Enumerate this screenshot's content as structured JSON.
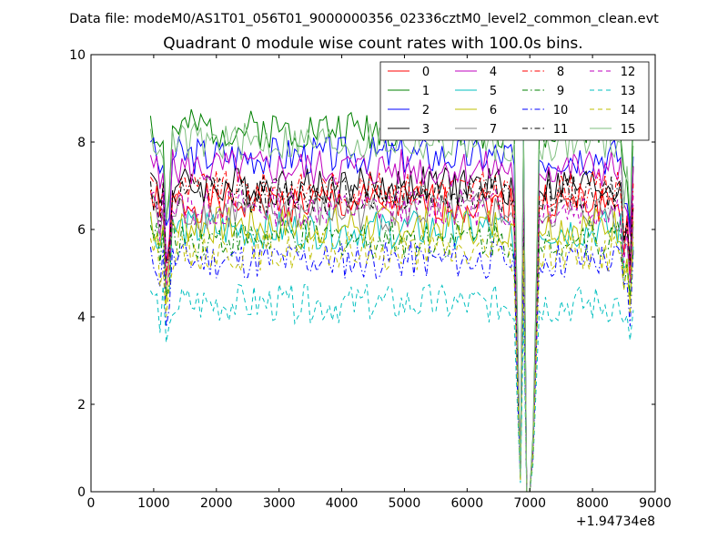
{
  "header": {
    "data_file": "Data file: modeM0/AS1T01_056T01_9000000356_02336cztM0_level2_common_clean.evt"
  },
  "chart_data": {
    "type": "line",
    "title": "Quadrant 0 module wise count rates with 100.0s bins.",
    "xlabel": "",
    "ylabel": "",
    "x_offset_label": "+1.94734e8",
    "xlim": [
      0,
      9000
    ],
    "ylim": [
      0,
      10
    ],
    "x_ticks": [
      0,
      1000,
      2000,
      3000,
      4000,
      5000,
      6000,
      7000,
      8000,
      9000
    ],
    "y_ticks": [
      0,
      2,
      4,
      6,
      8,
      10
    ],
    "x_tick_labels": [
      "0",
      "1000",
      "2000",
      "3000",
      "4000",
      "5000",
      "6000",
      "7000",
      "8000",
      "9000"
    ],
    "y_tick_labels": [
      "0",
      "2",
      "4",
      "6",
      "8",
      "10"
    ],
    "grid": false,
    "legend_position": "top-right",
    "x_start": 950,
    "x_step": 50,
    "series": [
      {
        "name": "0",
        "color": "#ff0000",
        "dash": "solid",
        "base": 6.6,
        "seed": 1
      },
      {
        "name": "1",
        "color": "#008000",
        "dash": "solid",
        "base": 8.3,
        "seed": 2
      },
      {
        "name": "2",
        "color": "#0000ff",
        "dash": "solid",
        "base": 7.7,
        "seed": 3
      },
      {
        "name": "3",
        "color": "#000000",
        "dash": "solid",
        "base": 7.0,
        "seed": 4
      },
      {
        "name": "4",
        "color": "#bf00bf",
        "dash": "solid",
        "base": 7.4,
        "seed": 5
      },
      {
        "name": "5",
        "color": "#00bfbf",
        "dash": "solid",
        "base": 6.0,
        "seed": 6
      },
      {
        "name": "6",
        "color": "#bfbf00",
        "dash": "solid",
        "base": 6.1,
        "seed": 7
      },
      {
        "name": "7",
        "color": "#808080",
        "dash": "solid",
        "base": 6.4,
        "seed": 8
      },
      {
        "name": "8",
        "color": "#ff0000",
        "dash": "dashdot",
        "base": 6.9,
        "seed": 9
      },
      {
        "name": "9",
        "color": "#008000",
        "dash": "dashdot",
        "base": 5.8,
        "seed": 10
      },
      {
        "name": "10",
        "color": "#0000ff",
        "dash": "dashdot",
        "base": 5.3,
        "seed": 11
      },
      {
        "name": "11",
        "color": "#000000",
        "dash": "dashdot",
        "base": 6.8,
        "seed": 12
      },
      {
        "name": "12",
        "color": "#bf00bf",
        "dash": "dashed",
        "base": 6.5,
        "seed": 13
      },
      {
        "name": "13",
        "color": "#00bfbf",
        "dash": "dashed",
        "base": 4.3,
        "seed": 14
      },
      {
        "name": "14",
        "color": "#bfbf00",
        "dash": "dashed",
        "base": 5.5,
        "seed": 15
      },
      {
        "name": "15",
        "color": "#7fbf7f",
        "dash": "solid",
        "base": 8.0,
        "seed": 16
      }
    ],
    "dip_points": [
      {
        "x": 1100,
        "factor": 0.93
      },
      {
        "x": 1200,
        "factor": 0.75
      },
      {
        "x": 1250,
        "factor": 0.82
      },
      {
        "x": 6750,
        "factor": 0.95
      },
      {
        "x": 6800,
        "factor": 0.5
      },
      {
        "x": 6850,
        "factor": 0.05
      },
      {
        "x": 6950,
        "factor": 0.0
      },
      {
        "x": 7000,
        "factor": 0.0
      },
      {
        "x": 7050,
        "factor": 0.15
      },
      {
        "x": 7100,
        "factor": 0.55
      },
      {
        "x": 8500,
        "factor": 0.85
      },
      {
        "x": 8550,
        "factor": 0.9
      },
      {
        "x": 8600,
        "factor": 0.75
      }
    ],
    "x_end": 8650
  }
}
